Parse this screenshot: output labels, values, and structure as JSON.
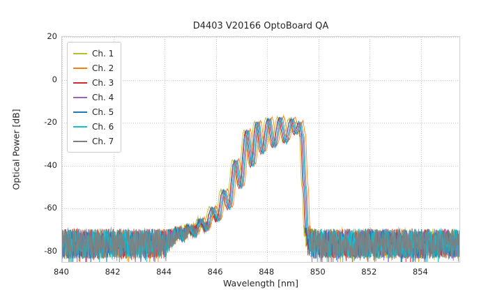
{
  "chart_data": {
    "type": "line",
    "title": "D4403 V20166 OptoBoard QA",
    "xlabel": "Wavelength [nm]",
    "ylabel": "Optical Power [dB]",
    "xlim": [
      840,
      855.5
    ],
    "ylim": [
      -85,
      20
    ],
    "xticks": [
      840,
      842,
      844,
      846,
      848,
      850,
      852,
      854
    ],
    "yticks": [
      20,
      0,
      -20,
      -40,
      -60,
      -80
    ],
    "grid": true,
    "grid_color": "#c8c8c8",
    "text_color": "#262626",
    "background": "#ffffff",
    "legend_position": "upper-left",
    "series": [
      {
        "name": "Ch. 1",
        "color": "#bcbd22",
        "dx": -0.1,
        "dy": 0.5,
        "seed": 11
      },
      {
        "name": "Ch. 2",
        "color": "#ff7f0e",
        "dx": 0.14,
        "dy": 0.8,
        "seed": 22
      },
      {
        "name": "Ch. 3",
        "color": "#d62728",
        "dx": -0.05,
        "dy": -0.5,
        "seed": 33
      },
      {
        "name": "Ch. 4",
        "color": "#9467bd",
        "dx": 0.02,
        "dy": 0.0,
        "seed": 44
      },
      {
        "name": "Ch. 5",
        "color": "#1f77b4",
        "dx": -0.02,
        "dy": 0.3,
        "seed": 55
      },
      {
        "name": "Ch. 6",
        "color": "#17becf",
        "dx": 0.05,
        "dy": -0.3,
        "seed": 66
      },
      {
        "name": "Ch. 7",
        "color": "#7f7f7f",
        "dx": 0.08,
        "dy": 0.2,
        "seed": 77
      }
    ],
    "spectrum_profile": [
      [
        843.8,
        -95
      ],
      [
        844.2,
        -80
      ],
      [
        844.5,
        -74
      ],
      [
        844.7,
        -76
      ],
      [
        844.95,
        -70
      ],
      [
        845.15,
        -74
      ],
      [
        845.4,
        -66
      ],
      [
        845.6,
        -71
      ],
      [
        845.85,
        -60
      ],
      [
        846.05,
        -66
      ],
      [
        846.3,
        -52
      ],
      [
        846.5,
        -60
      ],
      [
        846.75,
        -38
      ],
      [
        846.95,
        -50
      ],
      [
        847.2,
        -24
      ],
      [
        847.4,
        -40
      ],
      [
        847.6,
        -20
      ],
      [
        847.8,
        -34
      ],
      [
        848.05,
        -18.5
      ],
      [
        848.25,
        -31
      ],
      [
        848.5,
        -18
      ],
      [
        848.7,
        -29
      ],
      [
        848.95,
        -18.5
      ],
      [
        849.1,
        -25
      ],
      [
        849.25,
        -20
      ],
      [
        849.35,
        -26
      ],
      [
        849.45,
        -50
      ],
      [
        849.55,
        -75
      ],
      [
        849.7,
        -95
      ]
    ],
    "noise": {
      "mean": -76.5,
      "amplitude": 7,
      "spike_prob": 0.05,
      "spike_extra": 7
    },
    "signal_jitter": 0.9,
    "sample_step_nm": 0.01
  }
}
